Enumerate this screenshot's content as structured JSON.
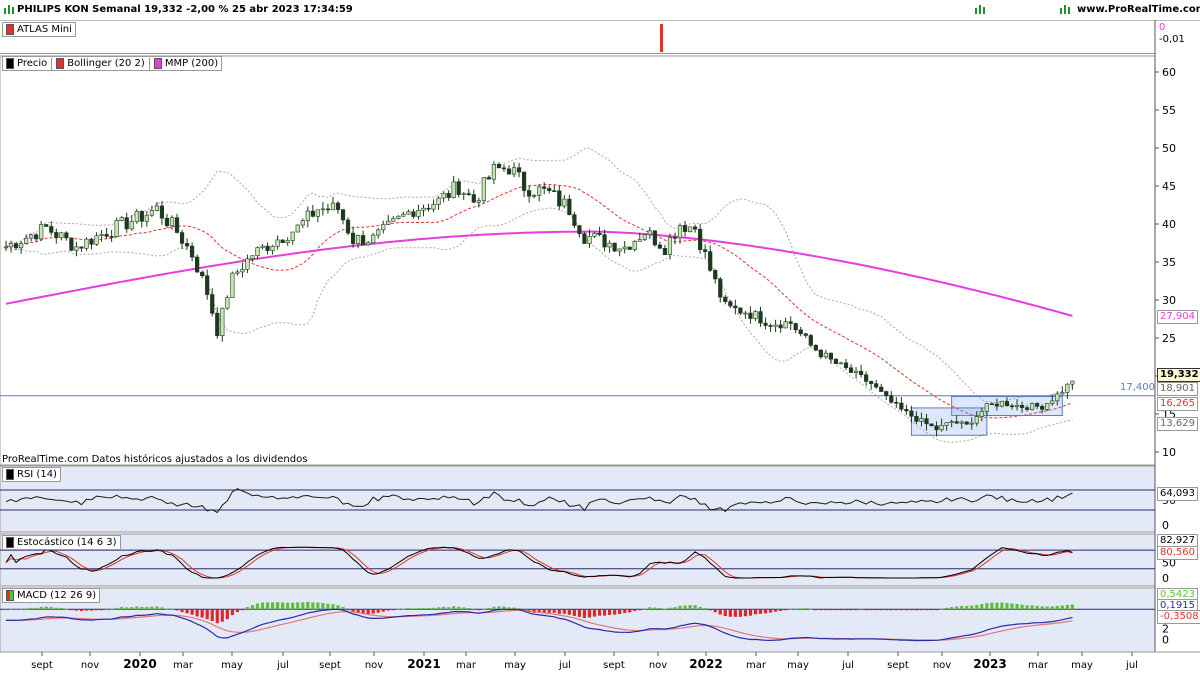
{
  "header": {
    "title": "PHILIPS KON Semanal 19,332 -2,00 % 25 abr 2023 17:34:59",
    "site": "www.ProRealTime.com"
  },
  "atlas": {
    "label": "ATLAS Mini",
    "axis_top": "0",
    "axis_bottom": "-0,01"
  },
  "legend": {
    "price": "Precio",
    "bollinger": "Bollinger (20 2)",
    "mmp": "MMP (200)"
  },
  "disclaimer": "ProRealTime.com Datos históricos ajustados a los dividendos",
  "price_labels": {
    "last": "19,332",
    "boll_upper": "18,901",
    "boll_mid": "16,265",
    "boll_lower": "13,629",
    "mmp": "27,904",
    "line": "17,400"
  },
  "rsi": {
    "label": "RSI (14)",
    "value": "64,093",
    "ticks": [
      "50",
      "0"
    ]
  },
  "stoch": {
    "label": "Estocástico (14 6 3)",
    "k": "82,927",
    "d": "80,560",
    "ticks": [
      "50",
      "0"
    ]
  },
  "macd": {
    "label": "MACD (12 26 9)",
    "v1": "0,5423",
    "v2": "0,1915",
    "v3": "-0,3508",
    "ticks": [
      "2",
      "0"
    ]
  },
  "colors": {
    "panel_bg": "#e4e9f7",
    "bull": "#c6e7b4",
    "bear": "#1e3a1e",
    "bollinger": "#e0332c",
    "bands": "#a9a9a9",
    "mmp": "#e83ce0",
    "h_line": "#5b7cc8",
    "rsi": "#1b1b1b",
    "k": "#000000",
    "d": "#e0332c",
    "hist_pos": "#5bbf3e",
    "hist_neg": "#d92a2a",
    "macd": "#2a2aa8",
    "signal": "#e07a7a"
  },
  "chart_data": [
    {
      "type": "candlestick",
      "title": "PHILIPS KON Semanal",
      "y_ticks": [
        10,
        15,
        20,
        25,
        30,
        35,
        40,
        45,
        50,
        55,
        60
      ],
      "ylim": [
        8,
        63
      ],
      "x_ticks": [
        "sept",
        "nov",
        "2020",
        "mar",
        "may",
        "jul",
        "sept",
        "nov",
        "2021",
        "mar",
        "may",
        "jul",
        "sept",
        "nov",
        "2022",
        "mar",
        "may",
        "jul",
        "sept",
        "nov",
        "2023",
        "mar",
        "may",
        "jul"
      ],
      "close_anchors": [
        [
          0,
          37
        ],
        [
          8,
          39.5
        ],
        [
          14,
          37
        ],
        [
          20,
          39
        ],
        [
          27,
          41
        ],
        [
          30,
          42
        ],
        [
          34,
          39
        ],
        [
          37,
          36
        ],
        [
          40,
          31
        ],
        [
          42,
          26
        ],
        [
          45,
          33
        ],
        [
          49,
          36
        ],
        [
          54,
          38
        ],
        [
          58,
          39.5
        ],
        [
          62,
          42
        ],
        [
          66,
          42
        ],
        [
          69,
          38
        ],
        [
          73,
          38
        ],
        [
          77,
          40
        ],
        [
          81,
          42
        ],
        [
          86,
          43
        ],
        [
          90,
          45
        ],
        [
          93,
          43
        ],
        [
          97,
          47
        ],
        [
          100,
          47.5
        ],
        [
          103,
          45
        ],
        [
          108,
          44
        ],
        [
          112,
          42
        ],
        [
          115,
          38.5
        ],
        [
          120,
          37.5
        ],
        [
          123,
          37
        ],
        [
          127,
          39
        ],
        [
          131,
          37
        ],
        [
          134,
          40
        ],
        [
          137,
          39.5
        ],
        [
          140,
          34
        ],
        [
          143,
          29
        ],
        [
          147,
          28.5
        ],
        [
          152,
          27
        ],
        [
          156,
          27
        ],
        [
          160,
          24
        ],
        [
          164,
          22
        ],
        [
          168,
          20.5
        ],
        [
          172,
          19
        ],
        [
          175,
          17
        ],
        [
          178,
          15.5
        ],
        [
          182,
          14
        ],
        [
          185,
          13
        ],
        [
          188,
          14
        ],
        [
          191,
          13.5
        ],
        [
          195,
          16
        ],
        [
          198,
          16.5
        ],
        [
          202,
          16
        ],
        [
          206,
          16
        ],
        [
          209,
          17.5
        ],
        [
          212,
          19.3
        ]
      ],
      "bollinger_period": 20,
      "bollinger_mult": 2,
      "mmp_period": 200,
      "mmp_last": 27.904,
      "boll_last": {
        "upper": 18.901,
        "mid": 16.265,
        "lower": 13.629
      },
      "h_line": 17.4,
      "boxes": [
        {
          "x": [
            188,
            210
          ],
          "y": [
            14.8,
            17.3
          ]
        },
        {
          "x": [
            180,
            195
          ],
          "y": [
            12.2,
            15.8
          ]
        }
      ],
      "last": 19.332
    },
    {
      "type": "line",
      "name": "RSI (14)",
      "last": 64.093,
      "levels": [
        70,
        30
      ],
      "ylim": [
        0,
        100
      ]
    },
    {
      "type": "line",
      "name": "Estocástico (14 6 3)",
      "k_last": 82.927,
      "d_last": 80.56,
      "levels": [
        80,
        20
      ],
      "ylim": [
        -10,
        110
      ]
    },
    {
      "type": "bar+line",
      "name": "MACD (12 26 9)",
      "macd_last": 0.5423,
      "signal_last": 0.1915,
      "hist_last": -0.3508,
      "ylim": [
        -5,
        2
      ]
    }
  ]
}
